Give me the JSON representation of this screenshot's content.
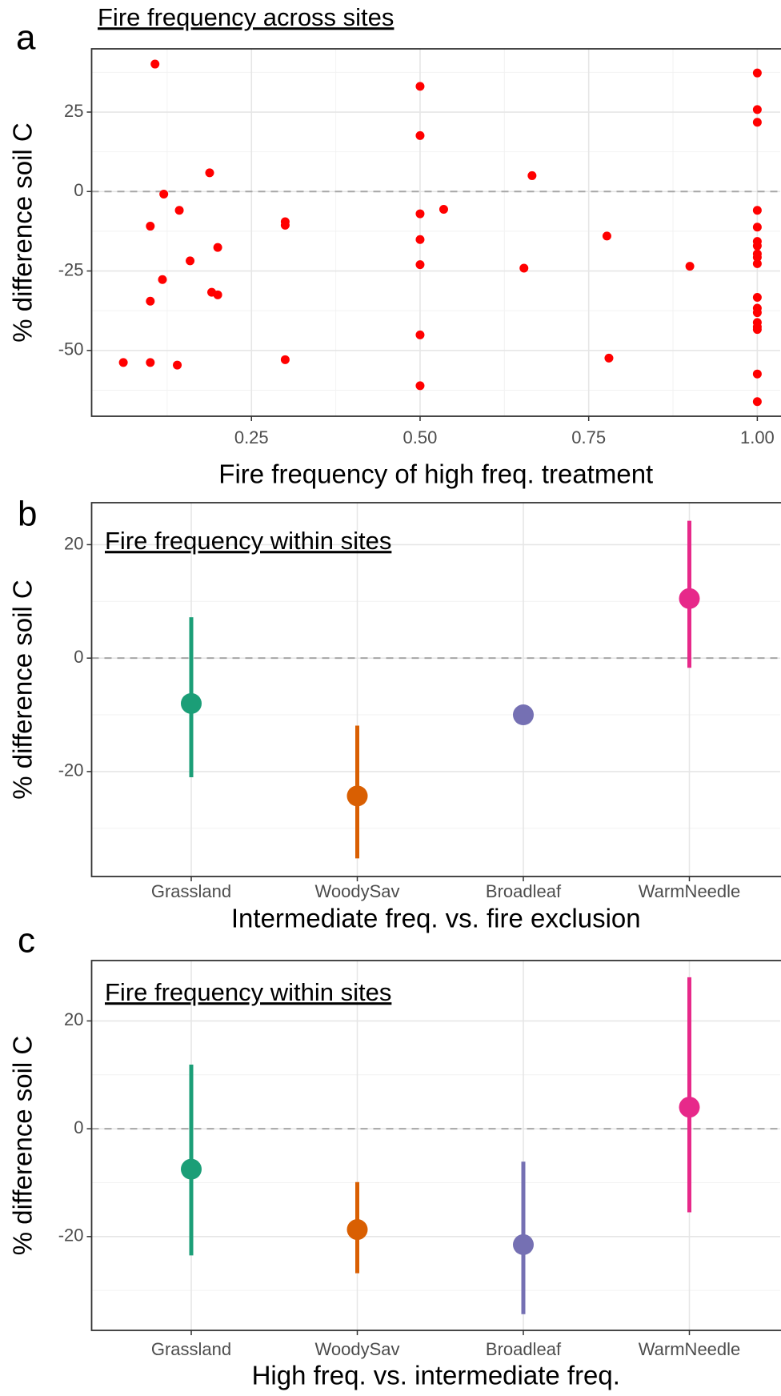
{
  "chart_data": [
    {
      "type": "scatter",
      "panel_label": "a",
      "title": "Fire frequency across sites",
      "x_label": "Fire frequency of high freq. treatment",
      "y_label": "% difference soil C",
      "x": [
        0.107,
        0.188,
        0.12,
        0.143,
        0.1,
        0.2,
        0.159,
        0.118,
        0.191,
        0.2,
        0.1,
        0.06,
        0.1,
        0.14,
        0.3,
        0.3,
        0.3,
        0.5,
        0.5,
        0.5,
        0.5,
        0.5,
        0.5,
        0.5,
        0.535,
        0.666,
        0.654,
        0.777,
        0.78,
        0.9,
        1.0,
        1.0,
        1.0,
        1.0,
        1.0,
        1.0,
        1.0,
        1.0,
        1.0,
        1.0,
        1.0,
        1.0,
        1.0,
        1.0,
        1.0,
        1.0,
        1.0,
        1.0
      ],
      "y": [
        40.1,
        5.9,
        -0.8,
        -5.9,
        -10.9,
        -17.6,
        -21.8,
        -27.7,
        -31.7,
        -32.5,
        -34.5,
        -53.8,
        -53.8,
        -54.6,
        -9.5,
        -10.6,
        -52.9,
        33.1,
        17.6,
        -7.0,
        -15.1,
        -23.0,
        -45.1,
        -61.1,
        -5.6,
        5.0,
        -24.1,
        -14.0,
        -52.4,
        -23.5,
        37.3,
        25.8,
        21.8,
        -5.9,
        -11.2,
        -15.7,
        -17.1,
        -19.6,
        -20.7,
        -22.7,
        -33.3,
        -36.7,
        -38.1,
        -41.2,
        -42.6,
        -43.4,
        -57.4,
        -66.1
      ],
      "color": "#ff0000",
      "xlim": [
        0.013,
        1.047
      ],
      "ylim": [
        -70.7,
        44.9
      ],
      "xticks": [
        {
          "value": 0.25,
          "label": "0.25"
        },
        {
          "value": 0.5,
          "label": "0.50"
        },
        {
          "value": 0.75,
          "label": "0.75"
        },
        {
          "value": 1.0,
          "label": "1.00"
        }
      ],
      "yticks": [
        25,
        0,
        -25,
        -50
      ],
      "minor_xticks": [
        0.125,
        0.375,
        0.625,
        0.875
      ],
      "minor_yticks": [
        37.5,
        12.5,
        -12.5,
        -37.5,
        -62.5
      ],
      "hline": 0,
      "grid": true
    },
    {
      "type": "pointrange",
      "panel_label": "b",
      "title": "Fire frequency within sites",
      "x_label": "Intermediate freq. vs. fire exclusion",
      "y_label": "% difference soil C",
      "categories": [
        "Grassland",
        "WoodySav",
        "Broadleaf",
        "WarmNeedle"
      ],
      "values": [
        -8.0,
        -24.3,
        -10.0,
        10.5
      ],
      "lower": [
        -21.0,
        -35.3,
        null,
        -1.7
      ],
      "upper": [
        7.2,
        -11.9,
        null,
        24.2
      ],
      "colors": [
        "#1b9e77",
        "#d95f02",
        "#7570b3",
        "#e7298a"
      ],
      "ylim": [
        -38.5,
        27.4
      ],
      "yticks": [
        20,
        0,
        -20
      ],
      "minor_yticks": [
        10,
        -10,
        -30
      ],
      "hline": 0,
      "grid": true
    },
    {
      "type": "pointrange",
      "panel_label": "c",
      "title": "Fire frequency within sites",
      "x_label": "High freq. vs. intermediate freq.",
      "y_label": "% difference soil C",
      "categories": [
        "Grassland",
        "WoodySav",
        "Broadleaf",
        "WarmNeedle"
      ],
      "values": [
        -7.5,
        -18.7,
        -21.5,
        4.0
      ],
      "lower": [
        -23.5,
        -26.8,
        -34.4,
        -15.5
      ],
      "upper": [
        11.9,
        -9.9,
        -6.1,
        28.1
      ],
      "colors": [
        "#1b9e77",
        "#d95f02",
        "#7570b3",
        "#e7298a"
      ],
      "ylim": [
        -37.4,
        31.2
      ],
      "yticks": [
        20,
        0,
        -20
      ],
      "minor_yticks": [
        10,
        -10,
        -30
      ],
      "hline": 0,
      "grid": true
    }
  ]
}
